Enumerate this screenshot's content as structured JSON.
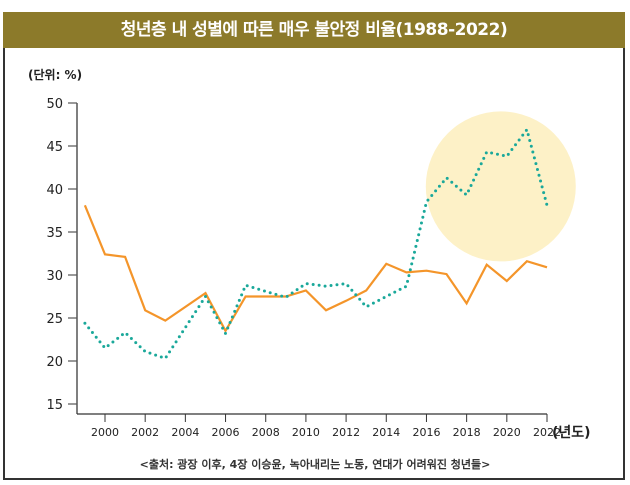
{
  "chart_data": {
    "type": "line",
    "title": "청년층 내 성별에 따른 매우 불안정 비율(1988-2022)",
    "ylabel": "(단위: %)",
    "xlabel": "(년도)",
    "ylim": [
      15,
      50
    ],
    "xlim": [
      1998.6,
      2022
    ],
    "yticks": [
      50,
      45,
      40,
      35,
      30,
      25,
      20,
      15
    ],
    "xticks": [
      2000,
      2002,
      2004,
      2006,
      2008,
      2010,
      2012,
      2014,
      2016,
      2018,
      2020,
      2022
    ],
    "grid": false,
    "legend": "none",
    "series": [
      {
        "name": "orange-solid-series",
        "color": "#f4952a",
        "style": "solid",
        "x": [
          1999,
          2000,
          2001,
          2002,
          2003,
          2005,
          2006,
          2007,
          2009,
          2010,
          2011,
          2012,
          2013,
          2014,
          2015,
          2016,
          2017,
          2018,
          2019,
          2020,
          2021,
          2022
        ],
        "values": [
          38.1,
          32.4,
          32.1,
          25.9,
          24.7,
          27.9,
          23.5,
          27.5,
          27.5,
          28.2,
          25.9,
          27.0,
          28.2,
          31.3,
          30.3,
          30.5,
          30.1,
          26.7,
          31.2,
          29.3,
          31.6,
          30.9
        ]
      },
      {
        "name": "teal-dotted-series",
        "color": "#1aa89a",
        "style": "dotted",
        "x": [
          1999,
          2000,
          2001,
          2002,
          2003,
          2005,
          2006,
          2007,
          2009,
          2010,
          2011,
          2012,
          2013,
          2015,
          2016,
          2017,
          2018,
          2019,
          2020,
          2021,
          2022
        ],
        "values": [
          24.4,
          21.5,
          23.3,
          21.1,
          20.3,
          27.5,
          23.2,
          28.8,
          27.4,
          29.0,
          28.7,
          29.0,
          26.3,
          28.7,
          38.5,
          41.3,
          39.3,
          44.3,
          43.8,
          46.9,
          38.1
        ]
      }
    ],
    "annotations": [
      {
        "type": "highlight-circle",
        "color": "#fdf1c7",
        "center_x": 2019.7,
        "center_y": 40.3
      }
    ]
  },
  "source_text": "<출처: 광장 이후, 4장 이승윤, 녹아내리는 노동, 연대가 어려워진 청년들>",
  "colors": {
    "title_bar": "#8c7a2a",
    "axis": "#555555"
  }
}
